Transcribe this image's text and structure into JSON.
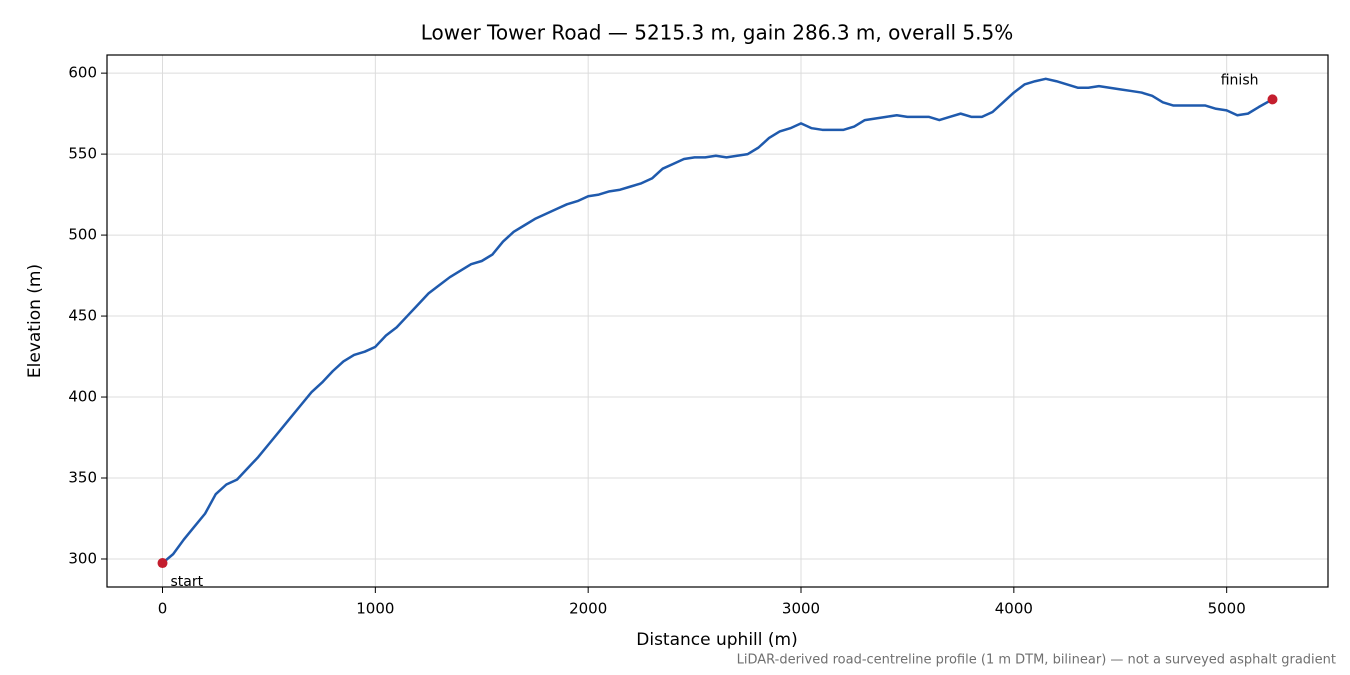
{
  "chart_data": {
    "type": "line",
    "title": "Lower Tower Road — 5215.3 m, gain 286.3 m, overall 5.5%",
    "x_label": "Distance uphill (m)",
    "y_label": "Elevation (m)",
    "note": "LiDAR-derived road-centreline profile (1 m DTM, bilinear) — not a surveyed asphalt gradient",
    "x": [
      0,
      50,
      100,
      150,
      200,
      250,
      300,
      350,
      400,
      450,
      500,
      550,
      600,
      650,
      700,
      750,
      800,
      850,
      900,
      950,
      1000,
      1050,
      1100,
      1150,
      1200,
      1250,
      1300,
      1350,
      1400,
      1450,
      1500,
      1550,
      1600,
      1650,
      1700,
      1750,
      1800,
      1850,
      1900,
      1950,
      2000,
      2050,
      2100,
      2150,
      2200,
      2250,
      2300,
      2350,
      2400,
      2450,
      2500,
      2550,
      2600,
      2650,
      2700,
      2750,
      2800,
      2850,
      2900,
      2950,
      3000,
      3050,
      3100,
      3150,
      3200,
      3250,
      3300,
      3350,
      3400,
      3450,
      3500,
      3550,
      3600,
      3650,
      3700,
      3750,
      3800,
      3850,
      3900,
      3950,
      4000,
      4050,
      4100,
      4150,
      4200,
      4250,
      4300,
      4350,
      4400,
      4450,
      4500,
      4550,
      4600,
      4650,
      4700,
      4750,
      4800,
      4850,
      4900,
      4950,
      5000,
      5050,
      5100,
      5150,
      5215.3
    ],
    "series": [
      {
        "color": "#1f5aad",
        "values": [
          297.5,
          303,
          312,
          320,
          328,
          340,
          346,
          349,
          356,
          363,
          371,
          379,
          387,
          395,
          403,
          409,
          416,
          422,
          426,
          428,
          431,
          438,
          443,
          450,
          457,
          464,
          469,
          474,
          478,
          482,
          484,
          488,
          496,
          502,
          506,
          510,
          513,
          516,
          519,
          521,
          524,
          525,
          527,
          528,
          530,
          532,
          535,
          541,
          544,
          547,
          548,
          548,
          549,
          548,
          549,
          550,
          554,
          560,
          564,
          566,
          569,
          566,
          565,
          565,
          565,
          567,
          571,
          572,
          573,
          574,
          573,
          573,
          573,
          571,
          573,
          575,
          573,
          573,
          576,
          582,
          588,
          593,
          595,
          596.5,
          595,
          593,
          591,
          591,
          592,
          591,
          590,
          589,
          588,
          586,
          582,
          580,
          580,
          580,
          580,
          578,
          577,
          574,
          575,
          579,
          583.8
        ]
      }
    ],
    "markers": [
      {
        "label": "start",
        "x": 0,
        "y": 297.5,
        "color": "#c41e2e"
      },
      {
        "label": "finish",
        "x": 5215.3,
        "y": 583.8,
        "color": "#c41e2e"
      }
    ],
    "xlim": [
      -260.8,
      5476.1
    ],
    "ylim": [
      282.7,
      611.2
    ],
    "xticks": [
      0,
      1000,
      2000,
      3000,
      4000,
      5000
    ],
    "yticks": [
      300,
      350,
      400,
      450,
      500,
      550,
      600
    ],
    "grid": true
  }
}
